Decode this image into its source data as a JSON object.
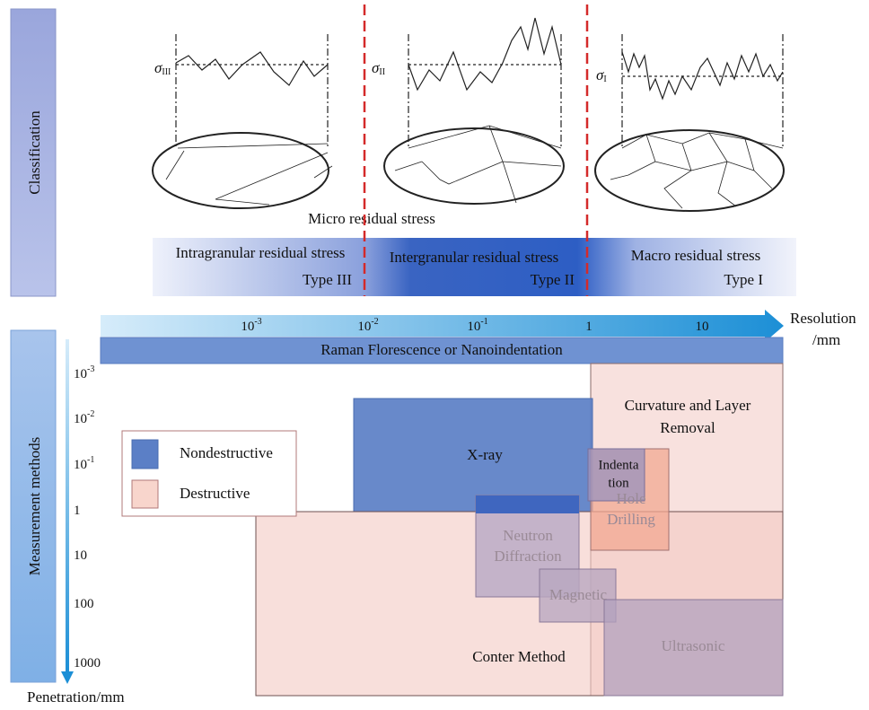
{
  "side_labels": {
    "classification": "Classification",
    "measurement": "Measurement methods"
  },
  "sigma_labels": [
    {
      "symbol": "σ",
      "subscript": "III"
    },
    {
      "symbol": "σ",
      "subscript": "II"
    },
    {
      "symbol": "σ",
      "subscript": "I"
    }
  ],
  "micro_label": "Micro residual stress",
  "stress_band": [
    {
      "name": "Intragranular residual stress",
      "type": "Type III"
    },
    {
      "name": "Intergranular residual stress",
      "type": "Type II"
    },
    {
      "name": "Macro residual stress",
      "type": "Type I"
    }
  ],
  "resolution_axis": {
    "label": [
      "Resolution",
      "/mm"
    ],
    "ticks": [
      {
        "base": "10",
        "exp": "-3"
      },
      {
        "base": "10",
        "exp": "-2"
      },
      {
        "base": "10",
        "exp": "-1"
      },
      {
        "base": "1"
      },
      {
        "base": "10"
      }
    ]
  },
  "raman_bar": "Raman Florescence or Nanoindentation",
  "penetration_axis": {
    "label": "Penetration/mm",
    "ticks": [
      {
        "base": "10",
        "exp": "-3"
      },
      {
        "base": "10",
        "exp": "-2"
      },
      {
        "base": "10",
        "exp": "-1"
      },
      {
        "base": "1"
      },
      {
        "base": "10"
      },
      {
        "base": "100"
      },
      {
        "base": "1000"
      }
    ]
  },
  "legend": {
    "nondestructive": "Nondestructive",
    "destructive": "Destructive"
  },
  "methods": {
    "curvature": [
      "Curvature and Layer",
      "Removal"
    ],
    "xray": [
      "X-ray"
    ],
    "indentation": [
      "Indenta",
      "tion"
    ],
    "hole_drilling": [
      "Hole",
      "Drilling"
    ],
    "neutron": [
      "Neutron",
      "Diffraction"
    ],
    "magnetic": [
      "Magnetic"
    ],
    "conter": [
      "Conter Method"
    ],
    "ultrasonic": [
      "Ultrasonic"
    ]
  }
}
